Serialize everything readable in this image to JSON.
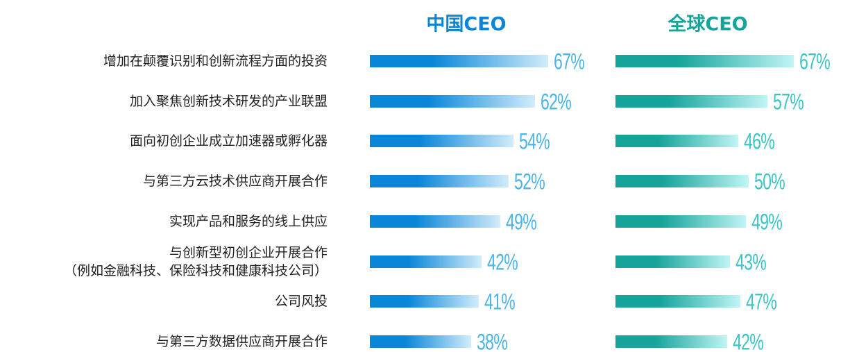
{
  "chart_data": {
    "type": "bar",
    "categories": [
      "增加在颠覆识别和创新流程方面的投资",
      "加入聚焦创新技术研发的产业联盟",
      "面向初创企业成立加速器或孵化器",
      "与第三方云技术供应商开展合作",
      "实现产品和服务的线上供应",
      "与创新型初创企业开展合作\n（例如金融科技、保险科技和健康科技公司）",
      "公司风投",
      "与第三方数据供应商开展合作"
    ],
    "series": [
      {
        "name": "中国CEO",
        "color": "#0a86d8",
        "values": [
          67,
          62,
          54,
          52,
          49,
          42,
          41,
          38
        ],
        "value_labels": [
          "67%",
          "62%",
          "54%",
          "52%",
          "49%",
          "42%",
          "41%",
          "38%"
        ]
      },
      {
        "name": "全球CEO",
        "color": "#15a39a",
        "values": [
          67,
          57,
          46,
          50,
          49,
          43,
          47,
          42
        ],
        "value_labels": [
          "67%",
          "57%",
          "46%",
          "50%",
          "49%",
          "43%",
          "47%",
          "42%"
        ]
      }
    ]
  }
}
